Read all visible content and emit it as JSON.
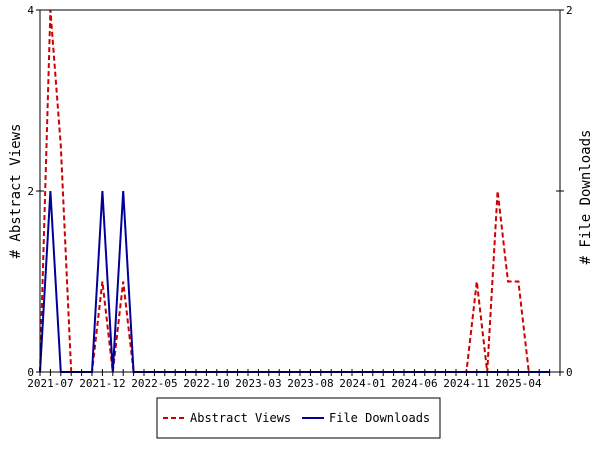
{
  "chart_data": {
    "type": "line",
    "x": [
      "2021-06",
      "2021-07",
      "2021-08",
      "2021-09",
      "2021-10",
      "2021-11",
      "2021-12",
      "2022-01",
      "2022-02",
      "2022-03",
      "2022-04",
      "2022-05",
      "2022-06",
      "2022-07",
      "2022-08",
      "2022-09",
      "2022-10",
      "2022-11",
      "2022-12",
      "2023-01",
      "2023-02",
      "2023-03",
      "2023-04",
      "2023-05",
      "2023-06",
      "2023-07",
      "2023-08",
      "2023-09",
      "2023-10",
      "2023-11",
      "2023-12",
      "2024-01",
      "2024-02",
      "2024-03",
      "2024-04",
      "2024-05",
      "2024-06",
      "2024-07",
      "2024-08",
      "2024-09",
      "2024-10",
      "2024-11",
      "2024-12",
      "2025-01",
      "2025-02",
      "2025-03",
      "2025-04",
      "2025-05",
      "2025-06",
      "2025-07"
    ],
    "x_tick_labels": [
      "2021-07",
      "2021-12",
      "2022-05",
      "2022-10",
      "2023-03",
      "2023-08",
      "2024-01",
      "2024-06",
      "2024-11",
      "2025-04"
    ],
    "series": [
      {
        "name": "Abstract Views",
        "axis": "left",
        "color": "#cc0000",
        "style": "dashed",
        "values": [
          0,
          4,
          2.5,
          0,
          0,
          0,
          1,
          0,
          1,
          0,
          0,
          0,
          0,
          0,
          0,
          0,
          0,
          0,
          0,
          0,
          0,
          0,
          0,
          0,
          0,
          0,
          0,
          0,
          0,
          0,
          0,
          0,
          0,
          0,
          0,
          0,
          0,
          0,
          0,
          0,
          0,
          0,
          1,
          0,
          2,
          1,
          1,
          0,
          0,
          0
        ]
      },
      {
        "name": "File Downloads",
        "axis": "right",
        "color": "#000099",
        "style": "solid",
        "values": [
          0,
          1,
          0,
          0,
          0,
          0,
          1,
          0,
          1,
          0,
          0,
          0,
          0,
          0,
          0,
          0,
          0,
          0,
          0,
          0,
          0,
          0,
          0,
          0,
          0,
          0,
          0,
          0,
          0,
          0,
          0,
          0,
          0,
          0,
          0,
          0,
          0,
          0,
          0,
          0,
          0,
          0,
          0,
          0,
          0,
          0,
          0,
          0,
          0,
          0
        ]
      }
    ],
    "ylabel_left": "# Abstract Views",
    "ylabel_right": "# File Downloads",
    "ylim_left": [
      0,
      4
    ],
    "ylim_right": [
      0,
      2
    ],
    "yticks_left": [
      "0",
      "2",
      "4"
    ],
    "yticks_right": [
      "0",
      "1",
      "2"
    ],
    "yticks_right_labels": [
      "0",
      "2"
    ],
    "grid": false,
    "legend_position": "bottom-center"
  }
}
